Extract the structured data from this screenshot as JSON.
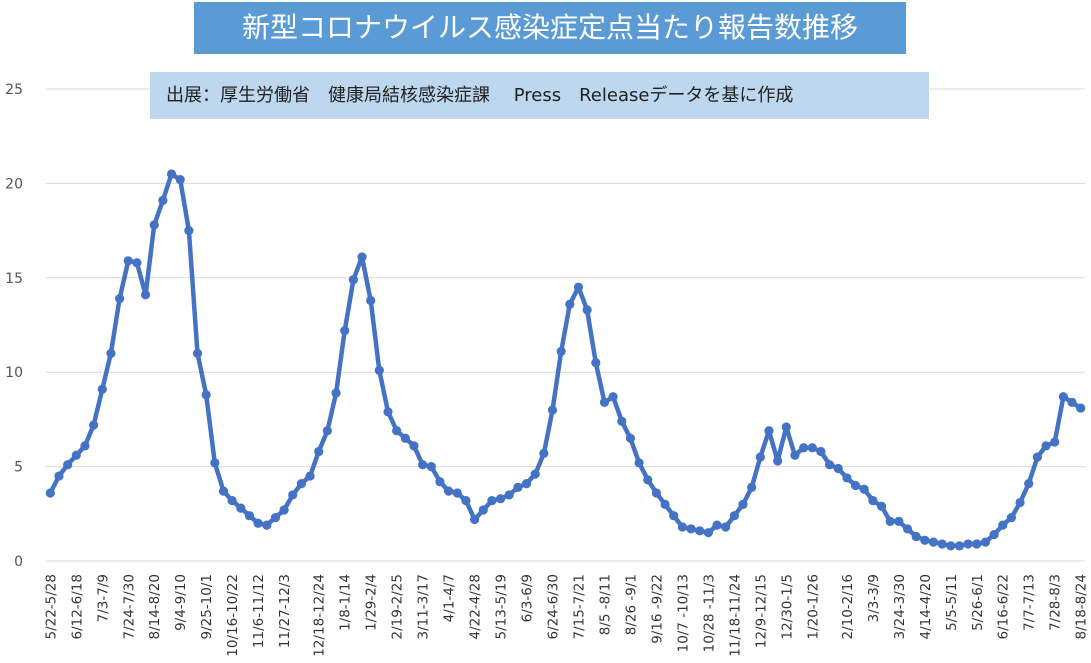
{
  "title": "新型コロナウイルス感染症定点当たり報告数推移",
  "source_note": "出展：厚生労働省　健康局結核感染症課　 Press　Releaseデータを基に作成",
  "colors": {
    "line": "#4472c4",
    "title_bg": "#5b9bd5",
    "note_bg": "#bdd7ee",
    "grid": "#d9d9d9"
  },
  "chart_data": {
    "type": "line",
    "title": "新型コロナウイルス感染症定点当たり報告数推移",
    "xlabel": "",
    "ylabel": "",
    "ylim": [
      0,
      25
    ],
    "yticks": [
      0,
      5,
      10,
      15,
      20,
      25
    ],
    "grid": true,
    "legend": "none",
    "x_tick_labels": [
      "5/22-5/28",
      "6/12-6/18",
      "7/3-7/9",
      "7/24-7/30",
      "8/14-8/20",
      "9/4-9/10",
      "9/25-10/1",
      "10/16-10/22",
      "11/6-11/12",
      "11/27-12/3",
      "12/18-12/24",
      "1/8-1/14",
      "1/29-2/4",
      "2/19-2/25",
      "3/11-3/17",
      "4/1-4/7",
      "4/22-4/28",
      "5/13-5/19",
      "6/3-6/9",
      "6/24-6/30",
      "7/15-7/21",
      "8/5 -8/11",
      "8/26 -9/1",
      "9/16 -9/22",
      "10/7 -10/13",
      "10/28 -11/3",
      "11/18-11/24",
      "12/9-12/15",
      "12/30-1/5",
      "1/20-1/26",
      "2/10-2/16",
      "3/3-3/9",
      "3/24-3/30",
      "4/14-4/20",
      "5/5-5/11",
      "5/26-6/1",
      "6/16-6/22",
      "7/7-7/13",
      "7/28-8/3",
      "8/18-8/24"
    ],
    "series": [
      {
        "values": [
          3.6,
          4.5,
          5.1,
          5.6,
          6.1,
          7.2,
          9.1,
          11.0,
          13.9,
          15.9,
          15.8,
          14.1,
          17.8,
          19.1,
          20.5,
          20.2,
          17.5,
          11.0,
          8.8,
          5.2,
          3.7,
          3.2,
          2.8,
          2.4,
          2.0,
          1.9,
          2.3,
          2.7,
          3.5,
          4.1,
          4.5,
          5.8,
          6.9,
          8.9,
          12.2,
          14.9,
          16.1,
          13.8,
          10.1,
          7.9,
          6.9,
          6.5,
          6.1,
          5.1,
          5.0,
          4.2,
          3.7,
          3.6,
          3.2,
          2.2,
          2.7,
          3.2,
          3.3,
          3.5,
          3.9,
          4.1,
          4.6,
          5.7,
          8.0,
          11.1,
          13.6,
          14.5,
          13.3,
          10.5,
          8.4,
          8.7,
          7.4,
          6.5,
          5.2,
          4.3,
          3.6,
          3.0,
          2.4,
          1.8,
          1.7,
          1.6,
          1.5,
          1.9,
          1.8,
          2.4,
          3.0,
          3.9,
          5.5,
          6.9,
          5.3,
          7.1,
          5.6,
          6.0,
          6.0,
          5.8,
          5.1,
          4.9,
          4.4,
          4.0,
          3.8,
          3.2,
          2.9,
          2.1,
          2.1,
          1.7,
          1.3,
          1.1,
          1.0,
          0.9,
          0.8,
          0.8,
          0.9,
          0.9,
          1.0,
          1.4,
          1.9,
          2.3,
          3.1,
          4.1,
          5.5,
          6.1,
          6.3,
          8.7,
          8.4,
          8.1
        ]
      }
    ]
  }
}
